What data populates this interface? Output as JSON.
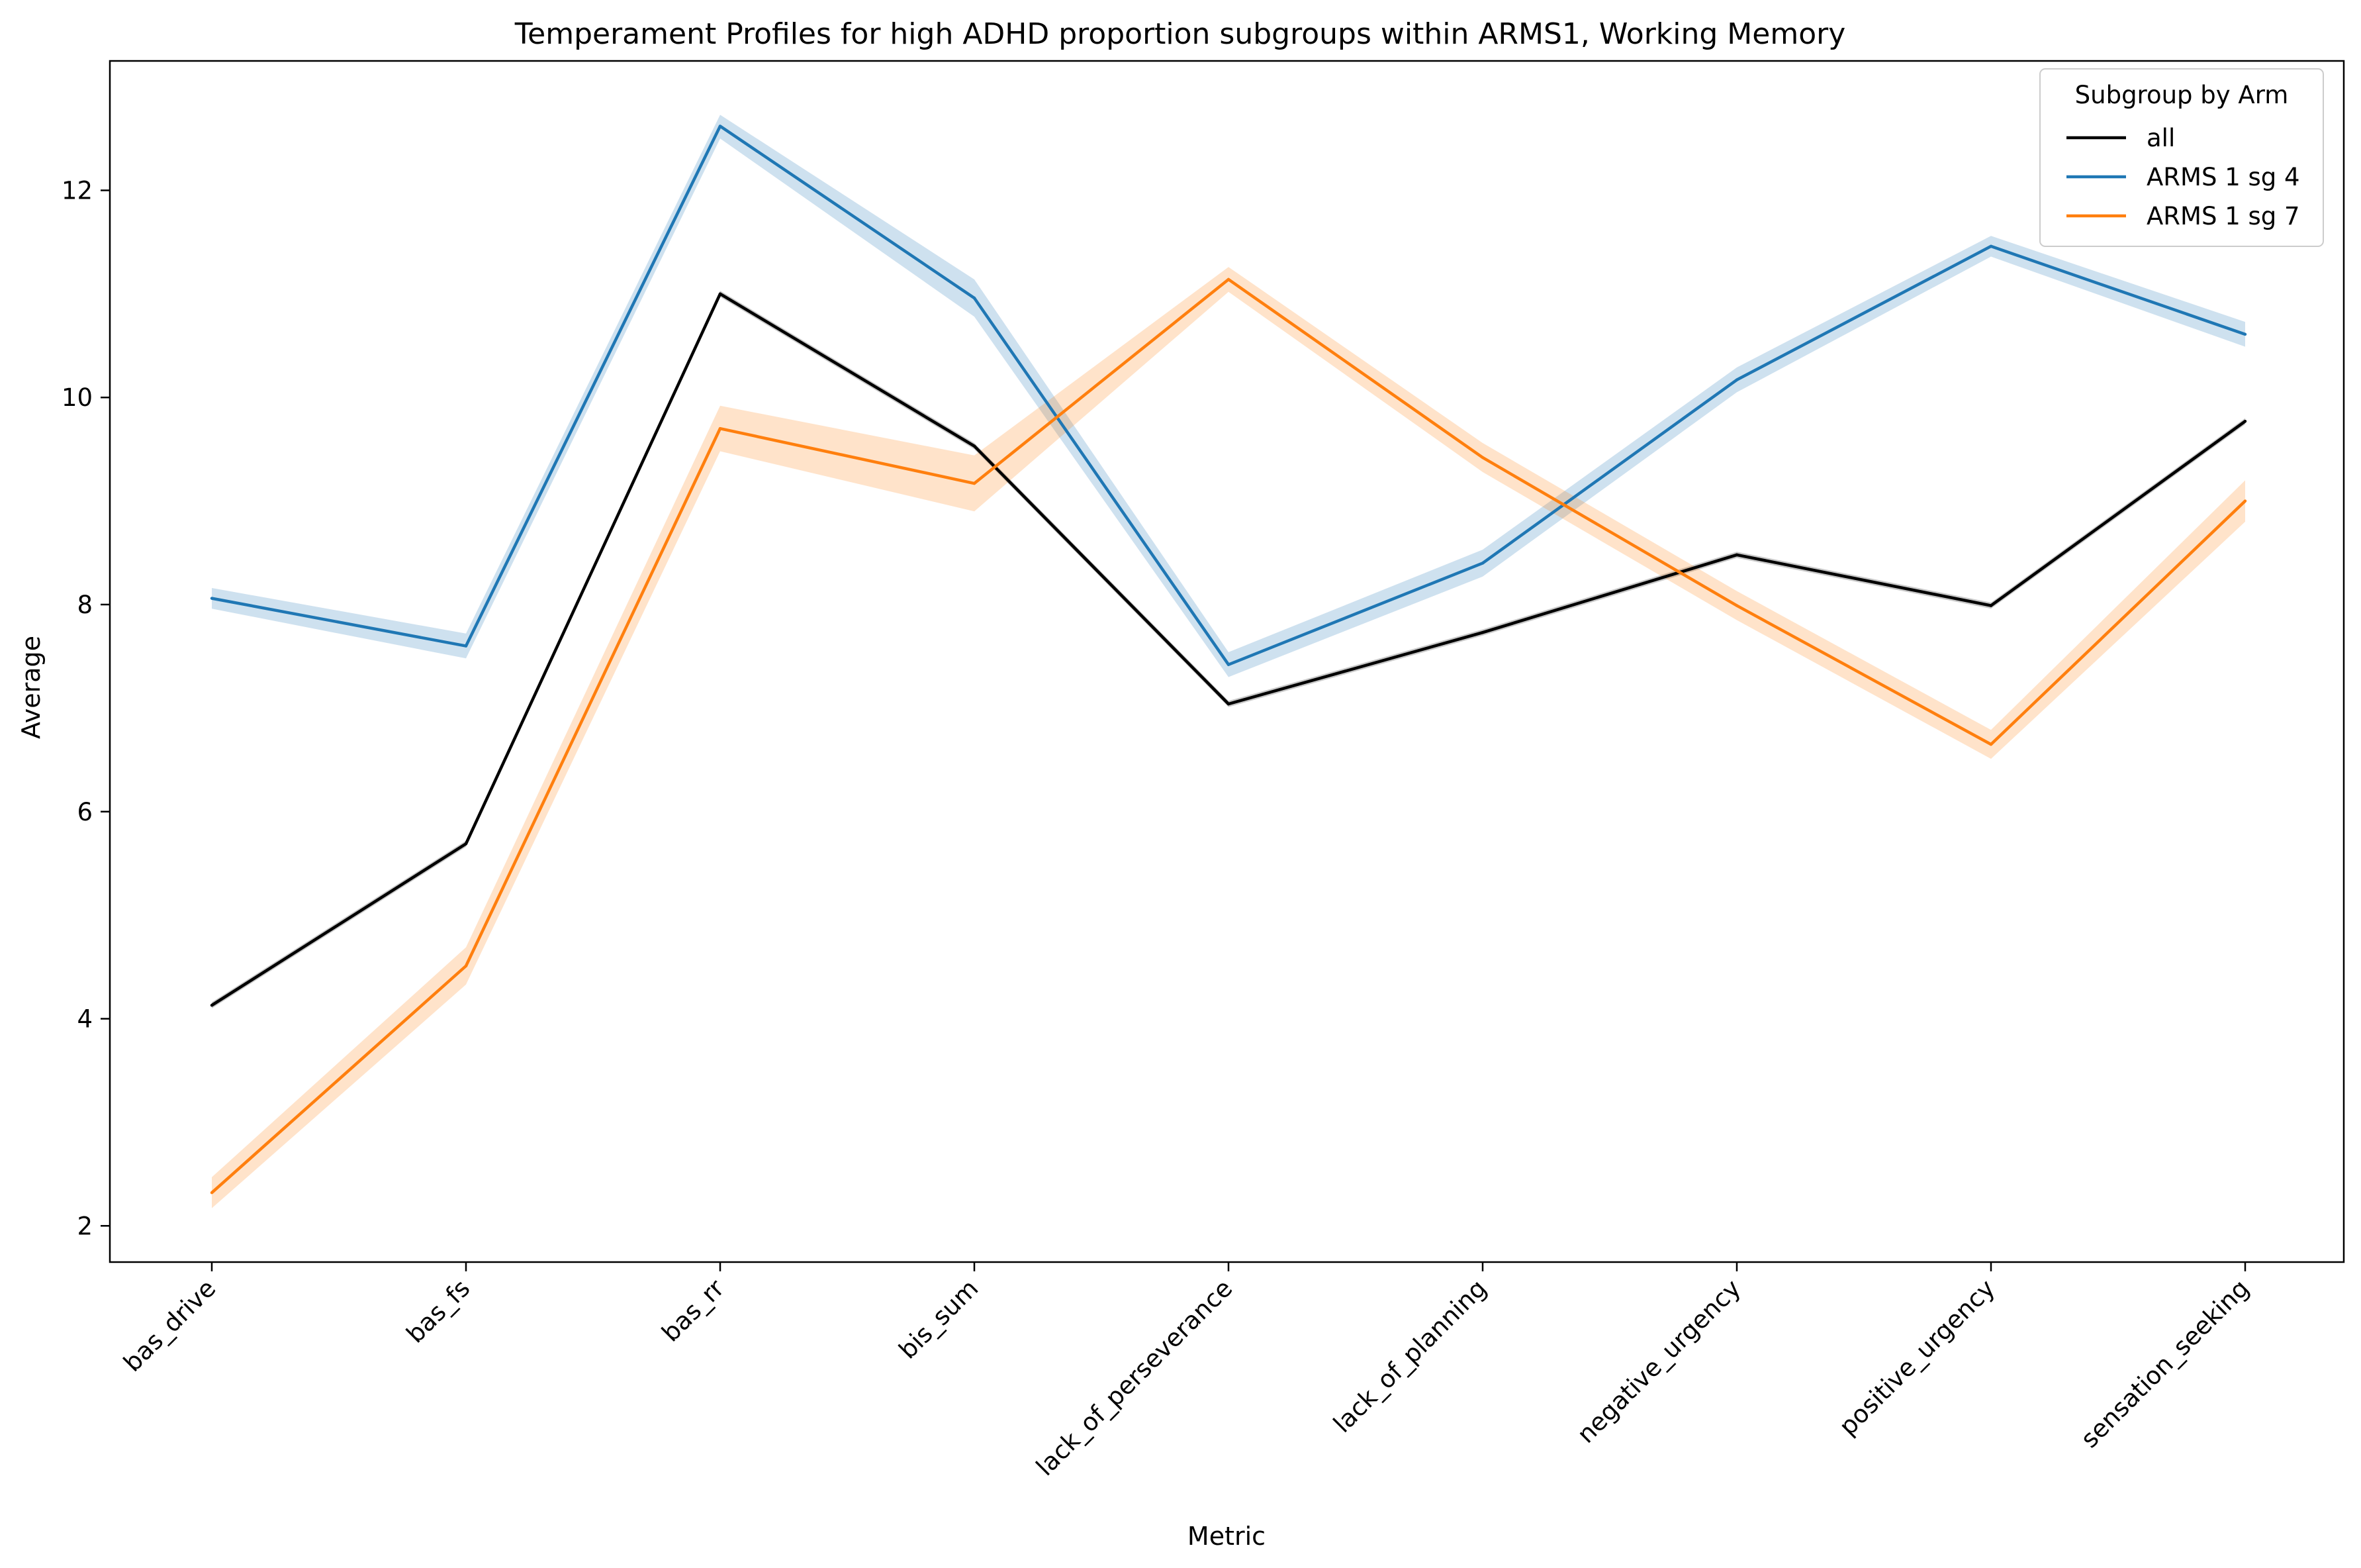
{
  "chart_data": {
    "type": "line",
    "title": "Temperament Profiles for high ADHD proportion subgroups within ARMS1, Working Memory",
    "xlabel": "Metric",
    "ylabel": "Average",
    "categories": [
      "bas_drive",
      "bas_fs",
      "bas_rr",
      "bis_sum",
      "lack_of_perseverance",
      "lack_of_planning",
      "negative_urgency",
      "positive_urgency",
      "sensation_seeking"
    ],
    "ylim": [
      1.65,
      13.25
    ],
    "yticks": [
      2,
      4,
      6,
      8,
      10,
      12
    ],
    "grid": false,
    "legend": {
      "title": "Subgroup by Arm",
      "placement": "top-right"
    },
    "series": [
      {
        "name": "all",
        "color": "#000000",
        "values": [
          4.13,
          5.69,
          11.0,
          9.53,
          7.04,
          7.73,
          8.48,
          7.99,
          9.77
        ],
        "ci_lower": [
          4.1,
          5.66,
          10.97,
          9.5,
          7.01,
          7.7,
          8.45,
          7.96,
          9.74
        ],
        "ci_upper": [
          4.16,
          5.72,
          11.03,
          9.56,
          7.07,
          7.76,
          8.51,
          8.02,
          9.8
        ]
      },
      {
        "name": "ARMS 1 sg 4",
        "color": "#1f77b4",
        "values": [
          8.06,
          7.6,
          12.62,
          10.96,
          7.42,
          8.4,
          10.17,
          11.46,
          10.61
        ],
        "ci_lower": [
          7.96,
          7.48,
          12.5,
          10.78,
          7.3,
          8.27,
          10.05,
          11.36,
          10.49
        ],
        "ci_upper": [
          8.16,
          7.72,
          12.73,
          11.14,
          7.54,
          8.53,
          10.29,
          11.56,
          10.73
        ]
      },
      {
        "name": "ARMS 1 sg 7",
        "color": "#ff7f0e",
        "values": [
          2.32,
          4.51,
          9.7,
          9.17,
          11.14,
          9.42,
          7.99,
          6.65,
          9.0
        ],
        "ci_lower": [
          2.17,
          4.33,
          9.48,
          8.9,
          11.02,
          9.28,
          7.85,
          6.51,
          8.8
        ],
        "ci_upper": [
          2.47,
          4.69,
          9.92,
          9.44,
          11.26,
          9.56,
          8.13,
          6.79,
          9.2
        ]
      }
    ]
  }
}
